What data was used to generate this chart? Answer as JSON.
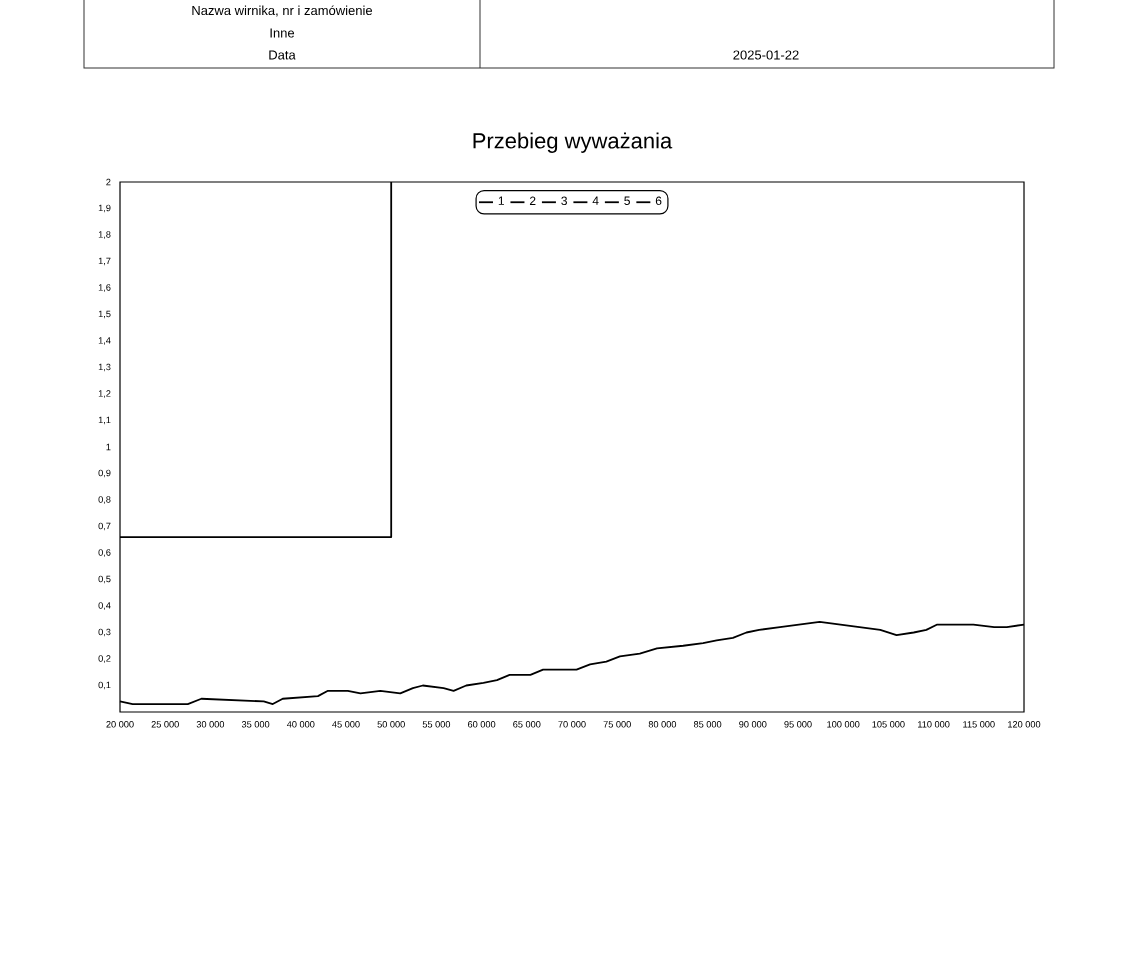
{
  "chart_data": {
    "type": "line",
    "title": "Przebieg wyważania",
    "annotations": [
      "Nazwa wirnika, nr i zamówienie",
      "Inne",
      "Data",
      "2025-01-22"
    ],
    "xlim": [
      20000,
      120000
    ],
    "xticks": [
      {
        "value": 20000,
        "label": "20 000"
      },
      {
        "value": 25000,
        "label": "25 000"
      },
      {
        "value": 30000,
        "label": "30 000"
      },
      {
        "value": 35000,
        "label": "35 000"
      },
      {
        "value": 40000,
        "label": "40 000"
      },
      {
        "value": 45000,
        "label": "45 000"
      },
      {
        "value": 50000,
        "label": "50 000"
      },
      {
        "value": 55000,
        "label": "55 000"
      },
      {
        "value": 60000,
        "label": "60 000"
      },
      {
        "value": 65000,
        "label": "65 000"
      },
      {
        "value": 70000,
        "label": "70 000"
      },
      {
        "value": 75000,
        "label": "75 000"
      },
      {
        "value": 80000,
        "label": "80 000"
      },
      {
        "value": 85000,
        "label": "85 000"
      },
      {
        "value": 90000,
        "label": "90 000"
      },
      {
        "value": 95000,
        "label": "95 000"
      },
      {
        "value": 100000,
        "label": "100 000"
      },
      {
        "value": 105000,
        "label": "105 000"
      },
      {
        "value": 110000,
        "label": "110 000"
      },
      {
        "value": 115000,
        "label": "115 000"
      },
      {
        "value": 120000,
        "label": "120 000"
      }
    ],
    "ylim": [
      0,
      2
    ],
    "yticks": [
      {
        "value": 0.1,
        "label": "0,1"
      },
      {
        "value": 0.2,
        "label": "0,2"
      },
      {
        "value": 0.3,
        "label": "0,3"
      },
      {
        "value": 0.4,
        "label": "0,4"
      },
      {
        "value": 0.5,
        "label": "0,5"
      },
      {
        "value": 0.6,
        "label": "0,6"
      },
      {
        "value": 0.7,
        "label": "0,7"
      },
      {
        "value": 0.8,
        "label": "0,8"
      },
      {
        "value": 0.9,
        "label": "0,9"
      },
      1,
      {
        "value": 1.1,
        "label": "1,1"
      },
      {
        "value": 1.2,
        "label": "1,2"
      },
      {
        "value": 1.3,
        "label": "1,3"
      },
      {
        "value": 1.4,
        "label": "1,4"
      },
      {
        "value": 1.5,
        "label": "1,5"
      },
      {
        "value": 1.6,
        "label": "1,6"
      },
      {
        "value": 1.7,
        "label": "1,7"
      },
      {
        "value": 1.8,
        "label": "1,8"
      },
      {
        "value": 1.9,
        "label": "1,9"
      },
      2
    ],
    "legend": "top",
    "series": [
      {
        "name": "1",
        "color": "#000000",
        "x": [
          20000,
          21400,
          27500,
          29000,
          35900,
          36900,
          38000,
          41900,
          43000,
          45200,
          46600,
          48800,
          51000,
          52400,
          53500,
          55800,
          56900,
          58300,
          60200,
          61700,
          63100,
          65400,
          66800,
          67900,
          70500,
          72000,
          73800,
          75300,
          77500,
          79400,
          82300,
          84500,
          86000,
          87800,
          89300,
          90700,
          93000,
          95200,
          97400,
          99600,
          101800,
          104100,
          105900,
          107800,
          109200,
          110400,
          112200,
          114400,
          116700,
          118100,
          120000
        ],
        "values": [
          0.04,
          0.03,
          0.03,
          0.05,
          0.04,
          0.03,
          0.05,
          0.06,
          0.08,
          0.08,
          0.07,
          0.08,
          0.07,
          0.09,
          0.1,
          0.09,
          0.08,
          0.1,
          0.11,
          0.12,
          0.14,
          0.14,
          0.16,
          0.16,
          0.16,
          0.18,
          0.19,
          0.21,
          0.22,
          0.24,
          0.25,
          0.26,
          0.27,
          0.28,
          0.3,
          0.31,
          0.32,
          0.33,
          0.34,
          0.33,
          0.32,
          0.31,
          0.29,
          0.3,
          0.31,
          0.33,
          0.33,
          0.33,
          0.32,
          0.32,
          0.33
        ]
      },
      {
        "name": "2",
        "color": "#000000"
      },
      {
        "name": "3",
        "color": "#000000"
      },
      {
        "name": "4",
        "color": "#000000"
      },
      {
        "name": "5",
        "color": "#000000"
      },
      {
        "name": "6",
        "color": "#000000"
      },
      {
        "color": "#000000",
        "x": [
          20000,
          50000,
          50000
        ],
        "values": [
          0.66,
          0.66,
          2
        ]
      }
    ]
  }
}
